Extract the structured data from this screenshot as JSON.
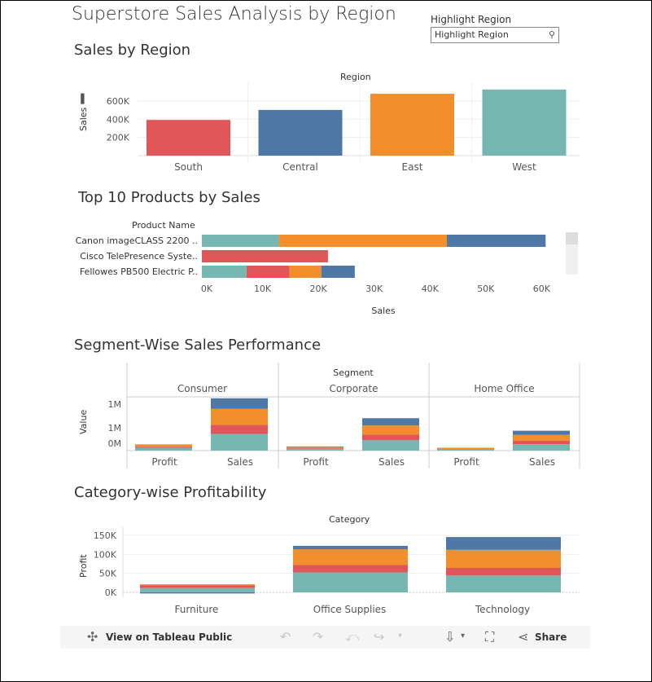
{
  "dashboard": {
    "title": "Superstore Sales Analysis by Region",
    "highlight_label": "Highlight Region",
    "highlight_placeholder": "Highlight Region"
  },
  "sales_by_region": {
    "title": "Sales by Region",
    "header": "Region",
    "ylabel": "Sales",
    "ticks": [
      "600K",
      "400K",
      "200K"
    ]
  },
  "top_products": {
    "title": "Top 10 Products by Sales",
    "header": "Product Name",
    "xlabel": "Sales",
    "products": [
      "Canon imageCLASS 2200 ..",
      "Cisco TelePresence Syste..",
      "Fellowes PB500 Electric P.."
    ],
    "ticks": [
      "0K",
      "10K",
      "20K",
      "30K",
      "40K",
      "50K",
      "60K"
    ]
  },
  "segment": {
    "title": "Segment-Wise Sales Performance",
    "header": "Segment",
    "ylabel": "Value",
    "segments": [
      "Consumer",
      "Corporate",
      "Home Office"
    ],
    "measures": [
      "Profit",
      "Sales"
    ],
    "ticks": [
      "1M",
      "1M",
      "0M"
    ]
  },
  "category": {
    "title": "Category-wise Profitability",
    "header": "Category",
    "ylabel": "Profit",
    "ticks": [
      "150K",
      "100K",
      "50K",
      "0K"
    ]
  },
  "toolbar": {
    "view_label": "View on Tableau Public",
    "share_label": "Share"
  },
  "colors": {
    "South": "#e15759",
    "Central": "#4e79a7",
    "East": "#f28e2b",
    "West": "#76b7b2"
  },
  "chart_data": [
    {
      "type": "bar",
      "title": "Sales by Region",
      "categories": [
        "South",
        "Central",
        "East",
        "West"
      ],
      "values": [
        391722,
        501240,
        678781,
        725458
      ],
      "ylabel": "Sales",
      "ylim": [
        0,
        760000
      ],
      "grid": true
    },
    {
      "type": "bar",
      "title": "Top 10 Products by Sales",
      "orientation": "horizontal",
      "categories": [
        "Canon imageCLASS 2200 ..",
        "Cisco TelePresence Syste..",
        "Fellowes PB500 Electric P.."
      ],
      "series": [
        {
          "name": "West",
          "values": [
            13800,
            0,
            8000
          ]
        },
        {
          "name": "East",
          "values": [
            30100,
            0,
            5700
          ]
        },
        {
          "name": "Central",
          "values": [
            17700,
            0,
            6000
          ]
        },
        {
          "name": "South",
          "values": [
            0,
            22600,
            7700
          ]
        }
      ],
      "series_order_per_bar": [
        [
          "West",
          "East",
          "Central"
        ],
        [
          "South"
        ],
        [
          "West",
          "South",
          "East",
          "Central"
        ]
      ],
      "xlabel": "Sales",
      "xlim": [
        0,
        65000
      ]
    },
    {
      "type": "bar",
      "title": "Segment-Wise Sales Performance",
      "stacked": true,
      "categories": [
        "Consumer Profit",
        "Consumer Sales",
        "Corporate Profit",
        "Corporate Sales",
        "Home Office Profit",
        "Home Office Sales"
      ],
      "series": [
        {
          "name": "West",
          "values": [
            57000,
            362000,
            38000,
            225000,
            24000,
            138000
          ]
        },
        {
          "name": "South",
          "values": [
            27000,
            195000,
            14000,
            122000,
            10000,
            74000
          ]
        },
        {
          "name": "East",
          "values": [
            42000,
            350000,
            28000,
            200000,
            22000,
            129000
          ]
        },
        {
          "name": "Central",
          "values": [
            8000,
            231000,
            10000,
            157000,
            6000,
            91000
          ]
        }
      ],
      "ylabel": "Value"
    },
    {
      "type": "bar",
      "title": "Category-wise Profitability",
      "stacked": true,
      "categories": [
        "Furniture",
        "Office Supplies",
        "Technology"
      ],
      "series": [
        {
          "name": "West",
          "values": [
            11500,
            52600,
            44300
          ]
        },
        {
          "name": "South",
          "values": [
            6800,
            19900,
            19990
          ]
        },
        {
          "name": "East",
          "values": [
            3000,
            41000,
            47500
          ]
        },
        {
          "name": "Central",
          "values": [
            -2900,
            8900,
            33700
          ]
        }
      ],
      "ylabel": "Profit",
      "ylim": [
        -5000,
        165000
      ]
    }
  ]
}
